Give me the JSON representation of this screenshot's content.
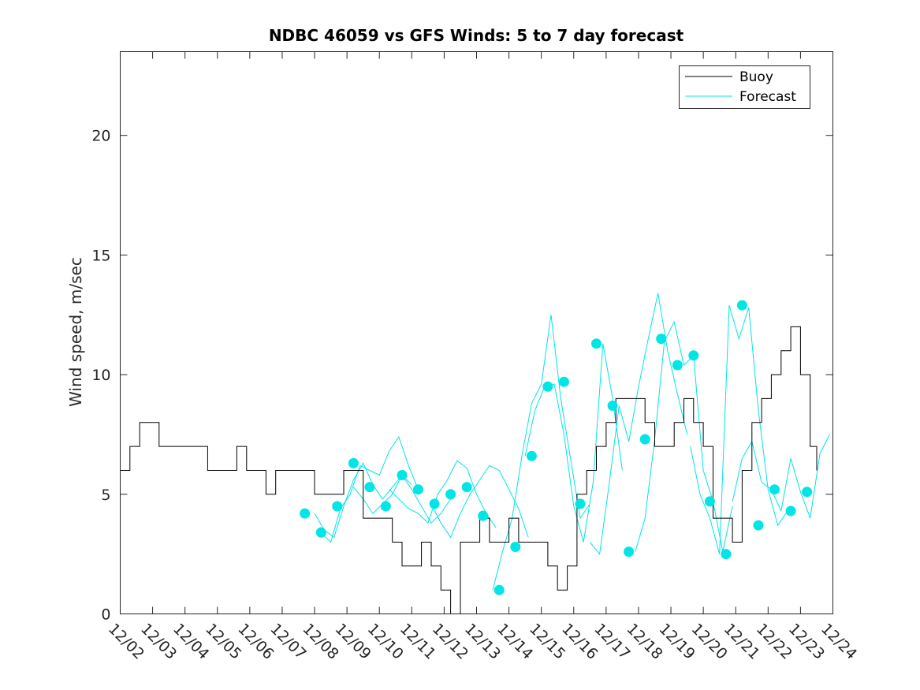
{
  "chart_data": {
    "type": "line",
    "title": "NDBC 46059 vs GFS Winds: 5 to 7 day forecast",
    "xlabel": "",
    "ylabel": "Wind speed, m/sec",
    "xlim": [
      0,
      22
    ],
    "ylim": [
      0,
      23.5
    ],
    "yticks": [
      0,
      5,
      10,
      15,
      20
    ],
    "x_tick_labels": [
      "12/02",
      "12/03",
      "12/04",
      "12/05",
      "12/06",
      "12/07",
      "12/08",
      "12/09",
      "12/10",
      "12/11",
      "12/12",
      "12/13",
      "12/14",
      "12/15",
      "12/16",
      "12/17",
      "12/18",
      "12/19",
      "12/20",
      "12/21",
      "12/22",
      "12/23",
      "12/24"
    ],
    "legend": {
      "position": "top-right",
      "entries": [
        "Buoy",
        "Forecast"
      ]
    },
    "colors": {
      "buoy": "#000000",
      "forecast": "#00e5e5"
    },
    "buoy": {
      "name": "Buoy",
      "x": [
        0,
        0.3,
        0.6,
        0.9,
        1.2,
        1.5,
        1.8,
        2.1,
        2.4,
        2.7,
        3.0,
        3.3,
        3.6,
        3.9,
        4.2,
        4.5,
        4.8,
        5.1,
        5.4,
        5.7,
        6.0,
        6.3,
        6.6,
        6.9,
        7.2,
        7.5,
        7.8,
        8.1,
        8.4,
        8.7,
        9.0,
        9.3,
        9.6,
        9.9,
        10.2,
        10.5,
        10.8,
        11.1,
        11.4,
        11.7,
        12.0,
        12.3,
        12.6,
        12.9,
        13.2,
        13.5,
        13.8,
        14.1,
        14.4,
        14.7,
        15.0,
        15.3,
        15.6,
        15.9,
        16.2,
        16.5,
        16.8,
        17.1,
        17.4,
        17.7,
        18.0,
        18.3,
        18.6,
        18.9,
        19.2,
        19.5,
        19.8,
        20.1,
        20.4,
        20.7,
        21.0,
        21.3,
        21.5
      ],
      "y": [
        6,
        7,
        8,
        8,
        7,
        7,
        7,
        7,
        7,
        6,
        6,
        6,
        7,
        6,
        6,
        5,
        6,
        6,
        6,
        6,
        5,
        5,
        5,
        6,
        6,
        4,
        4,
        4,
        3,
        2,
        2,
        3,
        2,
        1,
        0,
        3,
        3,
        4,
        3,
        3,
        4,
        3,
        3,
        3,
        2,
        1,
        2,
        5,
        6,
        7,
        8,
        9,
        9,
        9,
        8,
        7,
        7,
        8,
        9,
        8,
        7,
        4,
        4,
        3,
        6,
        8,
        9,
        10,
        11,
        12,
        10,
        7,
        6
      ]
    },
    "forecast_series": [
      {
        "name": "Forecast run 1",
        "x": [
          6.0,
          6.3,
          6.6,
          6.9,
          7.2,
          7.5,
          7.8,
          8.1,
          8.4,
          8.7,
          9.0
        ],
        "y": [
          4.2,
          3.5,
          3.2,
          4.5,
          5.6,
          6.3,
          5.4,
          4.8,
          5.3,
          5.8,
          5.4
        ]
      },
      {
        "name": "Forecast run 2",
        "x": [
          6.2,
          6.5,
          6.8,
          7.1,
          7.4,
          7.7,
          8.0,
          8.3,
          8.6,
          8.9,
          9.2
        ],
        "y": [
          3.4,
          3.0,
          4.4,
          5.0,
          6.2,
          6.0,
          5.8,
          6.8,
          7.4,
          6.2,
          5.2
        ]
      },
      {
        "name": "Forecast run 3",
        "x": [
          7.2,
          7.5,
          7.8,
          8.1,
          8.4,
          8.7,
          9.0,
          9.3,
          9.6,
          9.9,
          10.2
        ],
        "y": [
          5.3,
          4.8,
          4.2,
          4.6,
          5.0,
          5.8,
          5.2,
          4.5,
          3.8,
          4.2,
          4.8
        ]
      },
      {
        "name": "Forecast run 4",
        "x": [
          8.3,
          8.6,
          8.9,
          9.2,
          9.5,
          9.8,
          10.1,
          10.4,
          10.7,
          11.0,
          11.3,
          11.6
        ],
        "y": [
          5.2,
          4.8,
          4.4,
          4.2,
          3.8,
          5.0,
          5.6,
          6.4,
          6.1,
          5.0,
          4.2,
          3.6
        ]
      },
      {
        "name": "Forecast run 5",
        "x": [
          9.6,
          9.9,
          10.2,
          10.5,
          10.8,
          11.1,
          11.4,
          11.7,
          12.0,
          12.3,
          12.6
        ],
        "y": [
          4.6,
          3.8,
          3.2,
          4.2,
          5.0,
          5.6,
          6.2,
          6.0,
          5.2,
          4.4,
          3.2
        ]
      },
      {
        "name": "Forecast run 6",
        "x": [
          11.5,
          11.8,
          12.1,
          12.4,
          12.7,
          13.0,
          13.3,
          13.6,
          13.9,
          14.2,
          14.5
        ],
        "y": [
          1.0,
          2.6,
          4.0,
          6.6,
          8.8,
          9.6,
          12.5,
          9.0,
          6.5,
          4.0,
          4.6
        ]
      },
      {
        "name": "Forecast run 7",
        "x": [
          12.5,
          12.8,
          13.1,
          13.4,
          13.7,
          14.0,
          14.3,
          14.6,
          14.9,
          15.2,
          15.5
        ],
        "y": [
          6.6,
          8.5,
          9.5,
          9.6,
          7.5,
          4.5,
          3.0,
          5.5,
          11.3,
          9.0,
          6.0
        ]
      },
      {
        "name": "Forecast run 8",
        "x": [
          14.5,
          14.8,
          15.1,
          15.4,
          15.7,
          16.0,
          16.3,
          16.6,
          16.9,
          17.2,
          17.5
        ],
        "y": [
          3.0,
          2.5,
          5.5,
          8.7,
          7.2,
          9.5,
          11.5,
          13.4,
          11.0,
          9.2,
          7.5
        ]
      },
      {
        "name": "Forecast run 9",
        "x": [
          15.9,
          16.2,
          16.5,
          16.8,
          17.1,
          17.4,
          17.7,
          18.0,
          18.3,
          18.6,
          18.9
        ],
        "y": [
          2.6,
          4.0,
          7.3,
          11.4,
          12.2,
          10.4,
          10.8,
          6.0,
          4.7,
          2.6,
          4.5
        ]
      },
      {
        "name": "Forecast run 10",
        "x": [
          17.6,
          17.9,
          18.2,
          18.5,
          18.8,
          19.1,
          19.4,
          19.7,
          20.0,
          20.3,
          20.6
        ],
        "y": [
          7.0,
          5.0,
          4.0,
          2.5,
          12.9,
          11.5,
          12.8,
          8.5,
          5.2,
          3.7,
          4.3
        ]
      },
      {
        "name": "Forecast run 11",
        "x": [
          18.9,
          19.2,
          19.5,
          19.8,
          20.1,
          20.4,
          20.7,
          21.0,
          21.3,
          21.6,
          21.9
        ],
        "y": [
          4.7,
          6.5,
          7.2,
          5.5,
          5.2,
          4.3,
          6.5,
          5.1,
          4.0,
          6.7,
          7.5
        ]
      }
    ],
    "forecast_markers": {
      "x": [
        5.7,
        6.2,
        6.7,
        7.2,
        7.7,
        8.2,
        8.7,
        9.2,
        9.7,
        10.2,
        10.7,
        11.2,
        11.7,
        12.2,
        12.7,
        13.2,
        13.7,
        14.2,
        14.7,
        15.2,
        15.7,
        16.2,
        16.7,
        17.2,
        17.7,
        18.2,
        18.7,
        19.2,
        19.7,
        20.2,
        20.7,
        21.2
      ],
      "y": [
        4.2,
        3.4,
        4.5,
        6.3,
        5.3,
        4.5,
        5.8,
        5.2,
        4.6,
        5.0,
        5.3,
        4.1,
        1.0,
        2.8,
        6.6,
        9.5,
        9.7,
        4.6,
        11.3,
        8.7,
        2.6,
        7.3,
        11.5,
        10.4,
        10.8,
        4.7,
        2.5,
        12.9,
        3.7,
        5.2,
        4.3,
        5.1
      ]
    }
  }
}
